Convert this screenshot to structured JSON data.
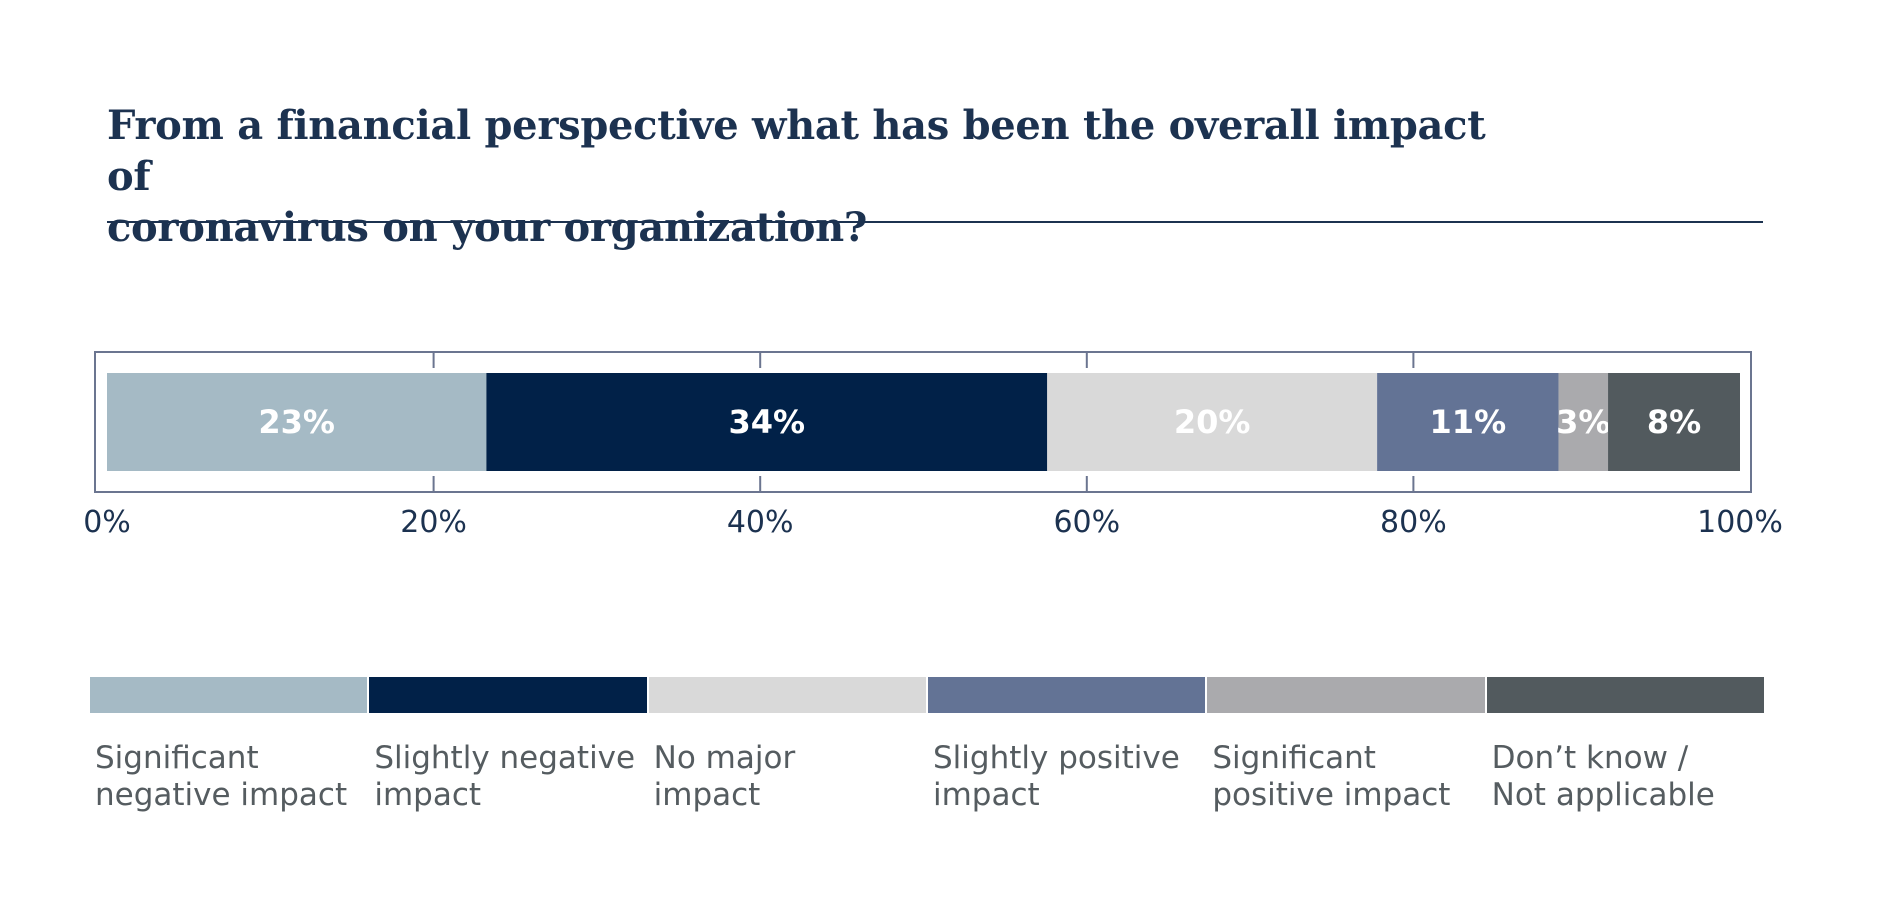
{
  "chart_data": {
    "type": "bar",
    "orientation": "horizontal",
    "stacked": true,
    "title": "From a financial perspective  what has been the overall impact of\ncoronavirus on your organization?",
    "xlim": [
      0,
      100
    ],
    "x_ticks": [
      "0%",
      "20%",
      "40%",
      "60%",
      "80%",
      "100%"
    ],
    "series": [
      {
        "name": "Significant\nnegative impact",
        "value": 23,
        "label": "23%",
        "color": "#a5bac5"
      },
      {
        "name": "Slightly negative\nimpact",
        "value": 34,
        "label": "34%",
        "color": "#012148"
      },
      {
        "name": "No major\nimpact",
        "value": 20,
        "label": "20%",
        "color": "#d9d9d9"
      },
      {
        "name": "Slightly positive\nimpact",
        "value": 11,
        "label": "11%",
        "color": "#637395"
      },
      {
        "name": "Significant\npositive impact",
        "value": 3,
        "label": "3%",
        "color": "#aaaaad"
      },
      {
        "name": "Don’t know /\nNot applicable",
        "value": 8,
        "label": "8%",
        "color": "#525a5e"
      }
    ],
    "legend_position": "bottom"
  }
}
